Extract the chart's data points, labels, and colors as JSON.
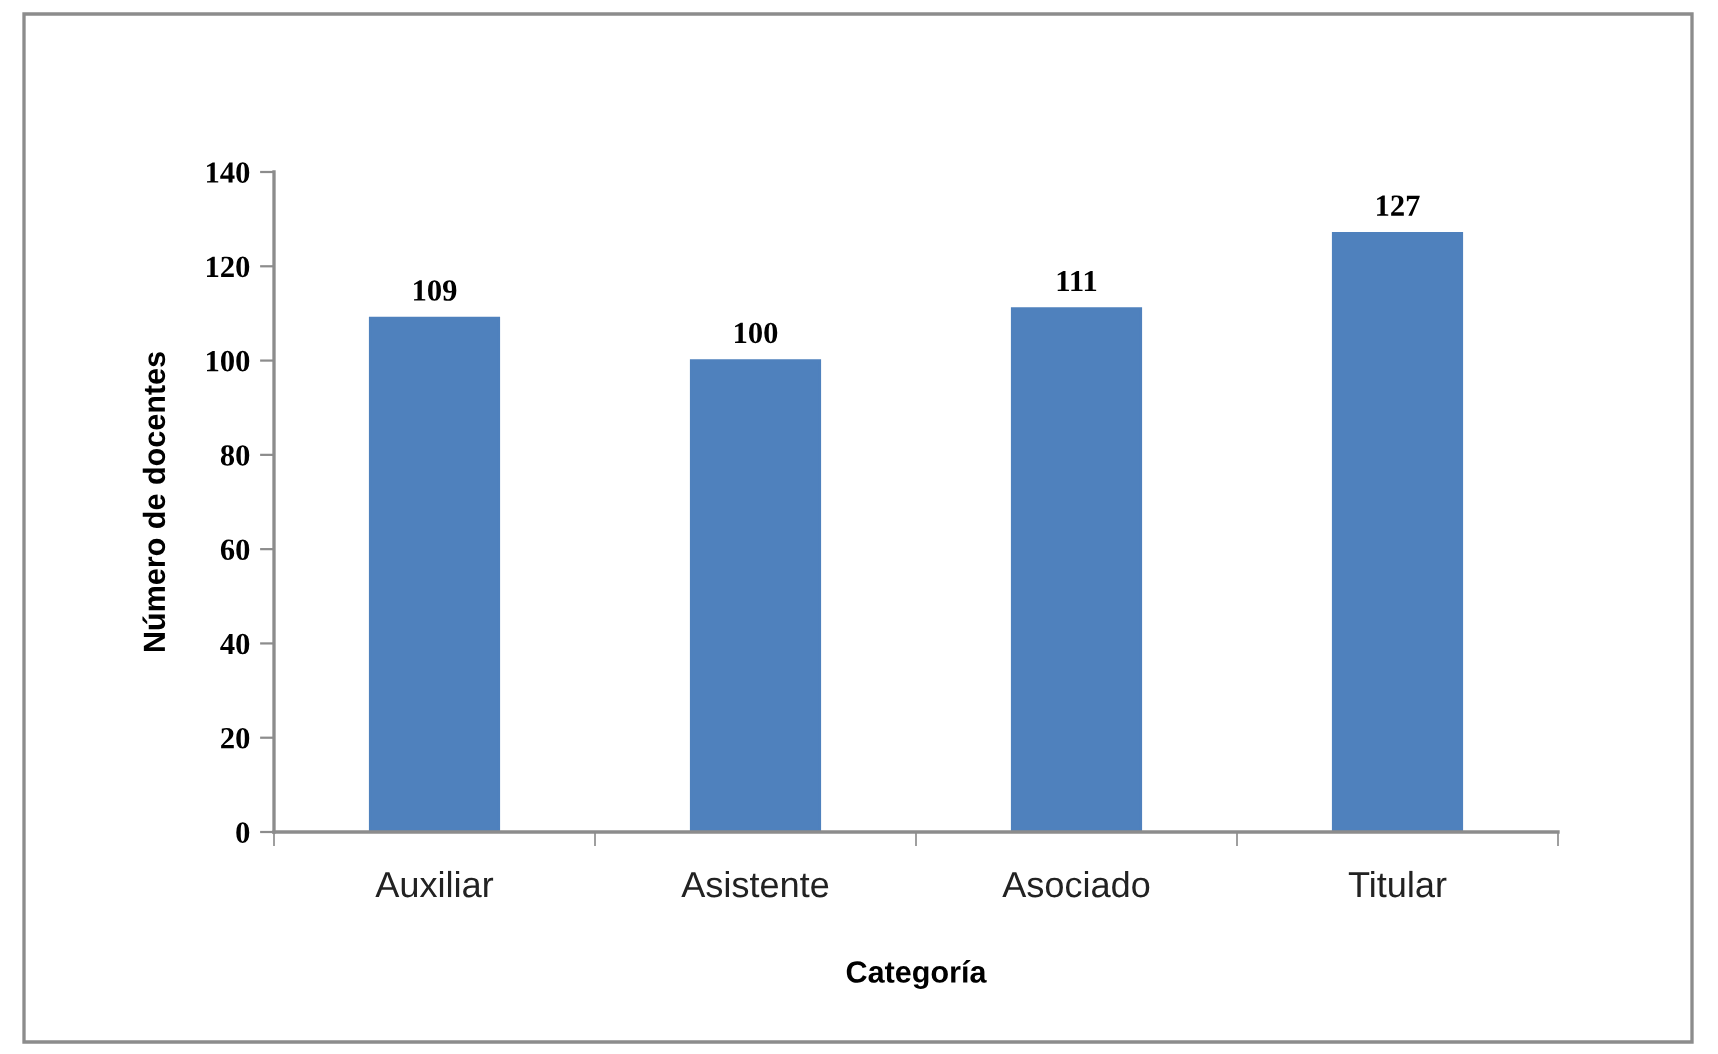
{
  "chart_data": {
    "type": "bar",
    "xlabel": "Categoría",
    "ylabel": "Número de docentes",
    "categories": [
      "Auxiliar",
      "Asistente",
      "Asociado",
      "Titular"
    ],
    "values": [
      109,
      100,
      111,
      127
    ],
    "color": "#4f81bd",
    "ylim": [
      0,
      140
    ],
    "yticks": [
      0,
      20,
      40,
      60,
      80,
      100,
      120,
      140
    ],
    "data_labels": true,
    "grid": false,
    "legend": false
  }
}
